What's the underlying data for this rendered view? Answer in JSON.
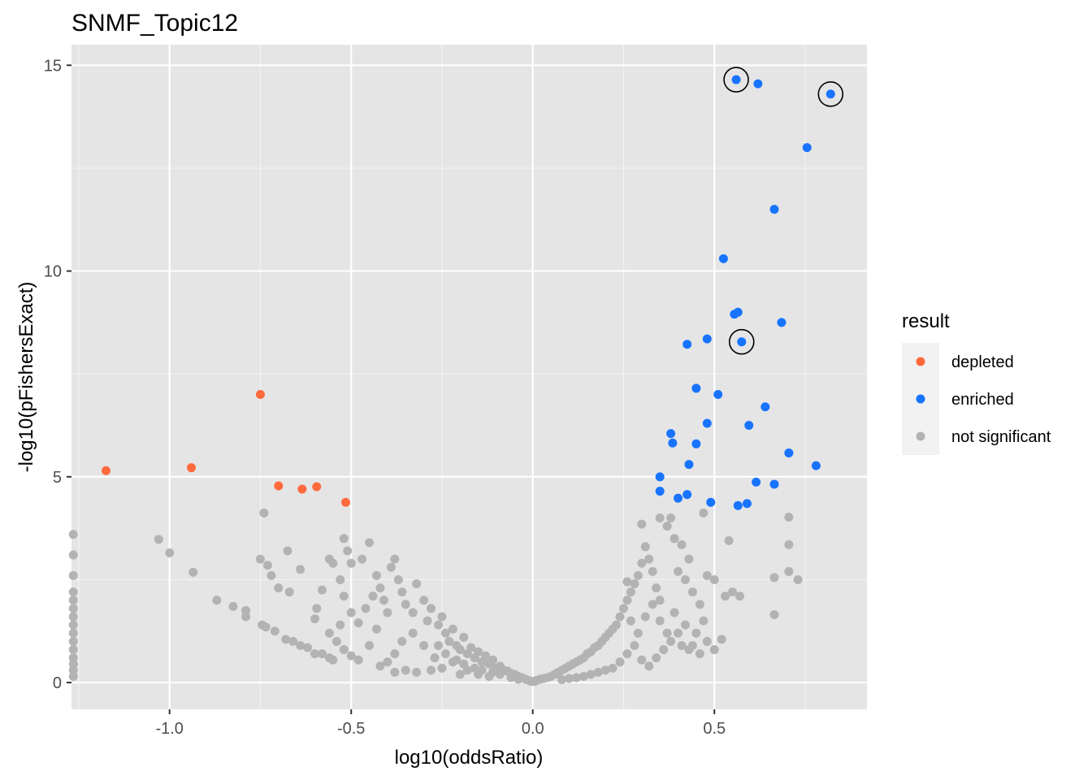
{
  "colors": {
    "panel_background": "#E5E5E5",
    "grid_major": "#FFFFFF",
    "grid_minor": "#F2F2F2",
    "depleted": "#FF6A3D",
    "enriched": "#1874FF",
    "not_significant": "#B3B3B3",
    "highlight_ring": "#000000"
  },
  "chart_data": {
    "type": "scatter",
    "title": "SNMF_Topic12",
    "xlabel": "log10(oddsRatio)",
    "ylabel": "-log10(pFishersExact)",
    "xlim": [
      -1.27,
      0.92
    ],
    "ylim": [
      -0.65,
      15.5
    ],
    "x_ticks": [
      -1.0,
      -0.5,
      0.0,
      0.5
    ],
    "x_tick_labels": [
      "-1.0",
      "-0.5",
      "0.0",
      "0.5"
    ],
    "y_ticks": [
      0,
      5,
      10,
      15
    ],
    "y_tick_labels": [
      "0",
      "5",
      "10",
      "15"
    ],
    "grid": true,
    "legend": {
      "title": "result",
      "placement": "right",
      "entries": [
        "depleted",
        "enriched",
        "not significant"
      ]
    },
    "series": [
      {
        "name": "depleted",
        "points": [
          [
            -1.175,
            5.15
          ],
          [
            -0.94,
            5.22
          ],
          [
            -0.75,
            7.0
          ],
          [
            -0.7,
            4.78
          ],
          [
            -0.635,
            4.7
          ],
          [
            -0.595,
            4.76
          ],
          [
            -0.515,
            4.38
          ]
        ]
      },
      {
        "name": "enriched",
        "points": [
          [
            0.56,
            14.65
          ],
          [
            0.62,
            14.55
          ],
          [
            0.82,
            14.3
          ],
          [
            0.755,
            13.0
          ],
          [
            0.665,
            11.5
          ],
          [
            0.525,
            10.3
          ],
          [
            0.565,
            9.0
          ],
          [
            0.555,
            8.95
          ],
          [
            0.685,
            8.75
          ],
          [
            0.48,
            8.35
          ],
          [
            0.575,
            8.28
          ],
          [
            0.425,
            8.22
          ],
          [
            0.45,
            7.15
          ],
          [
            0.51,
            7.0
          ],
          [
            0.64,
            6.7
          ],
          [
            0.48,
            6.3
          ],
          [
            0.595,
            6.25
          ],
          [
            0.38,
            6.05
          ],
          [
            0.385,
            5.82
          ],
          [
            0.45,
            5.8
          ],
          [
            0.705,
            5.58
          ],
          [
            0.43,
            5.3
          ],
          [
            0.78,
            5.27
          ],
          [
            0.35,
            5.0
          ],
          [
            0.615,
            4.87
          ],
          [
            0.665,
            4.82
          ],
          [
            0.35,
            4.65
          ],
          [
            0.425,
            4.57
          ],
          [
            0.4,
            4.48
          ],
          [
            0.49,
            4.38
          ],
          [
            0.59,
            4.35
          ],
          [
            0.565,
            4.3
          ]
        ]
      },
      {
        "name": "not significant",
        "points": [
          [
            -1.265,
            3.6
          ],
          [
            -1.265,
            3.1
          ],
          [
            -1.265,
            2.6
          ],
          [
            -1.265,
            2.2
          ],
          [
            -1.265,
            2.0
          ],
          [
            -1.265,
            1.8
          ],
          [
            -1.265,
            1.6
          ],
          [
            -1.265,
            1.4
          ],
          [
            -1.265,
            1.2
          ],
          [
            -1.265,
            1.0
          ],
          [
            -1.265,
            0.8
          ],
          [
            -1.265,
            0.6
          ],
          [
            -1.265,
            0.45
          ],
          [
            -1.265,
            0.3
          ],
          [
            -1.265,
            0.15
          ],
          [
            -1.03,
            3.48
          ],
          [
            -1.0,
            3.15
          ],
          [
            -0.935,
            2.68
          ],
          [
            -0.87,
            2.0
          ],
          [
            -0.825,
            1.85
          ],
          [
            -0.79,
            1.75
          ],
          [
            -0.79,
            1.6
          ],
          [
            -0.745,
            1.4
          ],
          [
            -0.735,
            1.35
          ],
          [
            -0.71,
            1.25
          ],
          [
            -0.68,
            1.05
          ],
          [
            -0.66,
            1.0
          ],
          [
            -0.64,
            0.9
          ],
          [
            -0.62,
            0.85
          ],
          [
            -0.6,
            0.7
          ],
          [
            -0.58,
            0.7
          ],
          [
            -0.56,
            0.6
          ],
          [
            -0.55,
            0.55
          ],
          [
            -0.74,
            4.12
          ],
          [
            -0.75,
            3.0
          ],
          [
            -0.73,
            2.85
          ],
          [
            -0.72,
            2.6
          ],
          [
            -0.7,
            2.3
          ],
          [
            -0.675,
            3.2
          ],
          [
            -0.67,
            2.2
          ],
          [
            -0.64,
            2.75
          ],
          [
            -0.6,
            1.55
          ],
          [
            -0.595,
            1.8
          ],
          [
            -0.58,
            2.25
          ],
          [
            -0.56,
            3.0
          ],
          [
            -0.55,
            2.9
          ],
          [
            -0.53,
            2.5
          ],
          [
            -0.52,
            2.1
          ],
          [
            -0.5,
            1.7
          ],
          [
            -0.48,
            1.45
          ],
          [
            -0.53,
            1.4
          ],
          [
            -0.56,
            1.2
          ],
          [
            -0.54,
            1.0
          ],
          [
            -0.52,
            0.8
          ],
          [
            -0.5,
            0.65
          ],
          [
            -0.48,
            0.55
          ],
          [
            -0.52,
            3.5
          ],
          [
            -0.51,
            3.2
          ],
          [
            -0.5,
            2.9
          ],
          [
            -0.47,
            3.0
          ],
          [
            -0.45,
            3.4
          ],
          [
            -0.43,
            2.6
          ],
          [
            -0.42,
            2.3
          ],
          [
            -0.41,
            2.0
          ],
          [
            -0.4,
            1.7
          ],
          [
            -0.39,
            2.8
          ],
          [
            -0.38,
            3.0
          ],
          [
            -0.37,
            2.5
          ],
          [
            -0.36,
            2.2
          ],
          [
            -0.35,
            1.9
          ],
          [
            -0.33,
            1.7
          ],
          [
            -0.32,
            2.4
          ],
          [
            -0.3,
            2.0
          ],
          [
            -0.29,
            1.5
          ],
          [
            -0.28,
            1.8
          ],
          [
            -0.26,
            1.4
          ],
          [
            -0.25,
            1.6
          ],
          [
            -0.24,
            1.2
          ],
          [
            -0.23,
            1.0
          ],
          [
            -0.22,
            1.3
          ],
          [
            -0.21,
            0.9
          ],
          [
            -0.2,
            0.8
          ],
          [
            -0.19,
            1.1
          ],
          [
            -0.18,
            0.7
          ],
          [
            -0.17,
            0.85
          ],
          [
            -0.16,
            0.6
          ],
          [
            -0.15,
            0.75
          ],
          [
            -0.14,
            0.5
          ],
          [
            -0.13,
            0.65
          ],
          [
            -0.12,
            0.45
          ],
          [
            -0.11,
            0.55
          ],
          [
            -0.1,
            0.35
          ],
          [
            -0.09,
            0.4
          ],
          [
            -0.08,
            0.3
          ],
          [
            -0.07,
            0.28
          ],
          [
            -0.06,
            0.22
          ],
          [
            -0.05,
            0.2
          ],
          [
            -0.04,
            0.15
          ],
          [
            -0.03,
            0.12
          ],
          [
            -0.02,
            0.08
          ],
          [
            -0.01,
            0.05
          ],
          [
            -0.005,
            0.03
          ],
          [
            -0.3,
            0.9
          ],
          [
            -0.33,
            1.2
          ],
          [
            -0.36,
            1.0
          ],
          [
            -0.38,
            0.7
          ],
          [
            -0.4,
            0.5
          ],
          [
            -0.42,
            0.4
          ],
          [
            -0.45,
            0.9
          ],
          [
            -0.43,
            1.3
          ],
          [
            -0.46,
            1.8
          ],
          [
            -0.44,
            2.1
          ],
          [
            -0.27,
            0.6
          ],
          [
            -0.25,
            0.35
          ],
          [
            -0.22,
            0.5
          ],
          [
            -0.28,
            0.3
          ],
          [
            -0.32,
            0.25
          ],
          [
            -0.35,
            0.3
          ],
          [
            -0.38,
            0.25
          ],
          [
            -0.2,
            0.2
          ],
          [
            -0.18,
            0.3
          ],
          [
            -0.15,
            0.2
          ],
          [
            -0.12,
            0.15
          ],
          [
            -0.26,
            0.9
          ],
          [
            -0.24,
            0.7
          ],
          [
            -0.21,
            0.55
          ],
          [
            -0.19,
            0.45
          ],
          [
            -0.16,
            0.35
          ],
          [
            -0.14,
            0.3
          ],
          [
            -0.11,
            0.25
          ],
          [
            -0.09,
            0.2
          ],
          [
            -0.06,
            0.12
          ],
          [
            -0.04,
            0.08
          ],
          [
            0.005,
            0.03
          ],
          [
            0.01,
            0.05
          ],
          [
            0.02,
            0.08
          ],
          [
            0.03,
            0.1
          ],
          [
            0.04,
            0.12
          ],
          [
            0.05,
            0.15
          ],
          [
            0.06,
            0.2
          ],
          [
            0.07,
            0.25
          ],
          [
            0.08,
            0.3
          ],
          [
            0.09,
            0.35
          ],
          [
            0.1,
            0.4
          ],
          [
            0.11,
            0.45
          ],
          [
            0.12,
            0.5
          ],
          [
            0.13,
            0.55
          ],
          [
            0.14,
            0.6
          ],
          [
            0.15,
            0.7
          ],
          [
            0.16,
            0.75
          ],
          [
            0.17,
            0.85
          ],
          [
            0.18,
            0.9
          ],
          [
            0.19,
            1.0
          ],
          [
            0.2,
            1.1
          ],
          [
            0.21,
            1.2
          ],
          [
            0.22,
            1.3
          ],
          [
            0.23,
            1.4
          ],
          [
            0.24,
            1.6
          ],
          [
            0.25,
            1.8
          ],
          [
            0.26,
            2.0
          ],
          [
            0.27,
            2.2
          ],
          [
            0.28,
            2.4
          ],
          [
            0.29,
            2.6
          ],
          [
            0.3,
            2.9
          ],
          [
            0.31,
            3.3
          ],
          [
            0.32,
            3.0
          ],
          [
            0.33,
            2.7
          ],
          [
            0.34,
            2.3
          ],
          [
            0.35,
            2.0
          ],
          [
            0.3,
            3.85
          ],
          [
            0.35,
            4.0
          ],
          [
            0.38,
            4.0
          ],
          [
            0.37,
            3.8
          ],
          [
            0.39,
            3.5
          ],
          [
            0.41,
            3.35
          ],
          [
            0.43,
            3.0
          ],
          [
            0.4,
            2.7
          ],
          [
            0.42,
            2.5
          ],
          [
            0.44,
            2.2
          ],
          [
            0.46,
            1.9
          ],
          [
            0.48,
            2.6
          ],
          [
            0.5,
            2.5
          ],
          [
            0.53,
            2.1
          ],
          [
            0.55,
            2.2
          ],
          [
            0.57,
            2.1
          ],
          [
            0.47,
            4.12
          ],
          [
            0.54,
            3.45
          ],
          [
            0.705,
            4.02
          ],
          [
            0.705,
            3.35
          ],
          [
            0.705,
            2.7
          ],
          [
            0.73,
            2.5
          ],
          [
            0.665,
            2.55
          ],
          [
            0.665,
            1.65
          ],
          [
            0.32,
            0.4
          ],
          [
            0.34,
            0.6
          ],
          [
            0.36,
            0.8
          ],
          [
            0.38,
            1.0
          ],
          [
            0.4,
            1.2
          ],
          [
            0.42,
            1.4
          ],
          [
            0.44,
            0.9
          ],
          [
            0.46,
            0.7
          ],
          [
            0.48,
            1.0
          ],
          [
            0.5,
            0.8
          ],
          [
            0.52,
            1.05
          ],
          [
            0.3,
            0.55
          ],
          [
            0.28,
            0.9
          ],
          [
            0.26,
            0.7
          ],
          [
            0.24,
            0.5
          ],
          [
            0.22,
            0.35
          ],
          [
            0.2,
            0.3
          ],
          [
            0.18,
            0.25
          ],
          [
            0.16,
            0.2
          ],
          [
            0.14,
            0.15
          ],
          [
            0.12,
            0.12
          ],
          [
            0.1,
            0.1
          ],
          [
            0.08,
            0.07
          ],
          [
            0.26,
            2.45
          ],
          [
            0.27,
            1.5
          ],
          [
            0.29,
            1.2
          ],
          [
            0.31,
            1.6
          ],
          [
            0.33,
            1.9
          ],
          [
            0.35,
            1.5
          ],
          [
            0.37,
            1.2
          ],
          [
            0.39,
            1.7
          ],
          [
            0.41,
            0.9
          ],
          [
            0.43,
            0.8
          ],
          [
            0.45,
            1.2
          ],
          [
            0.47,
            1.5
          ]
        ]
      }
    ],
    "highlighted": [
      [
        0.56,
        14.65
      ],
      [
        0.82,
        14.3
      ],
      [
        0.575,
        8.28
      ]
    ]
  }
}
